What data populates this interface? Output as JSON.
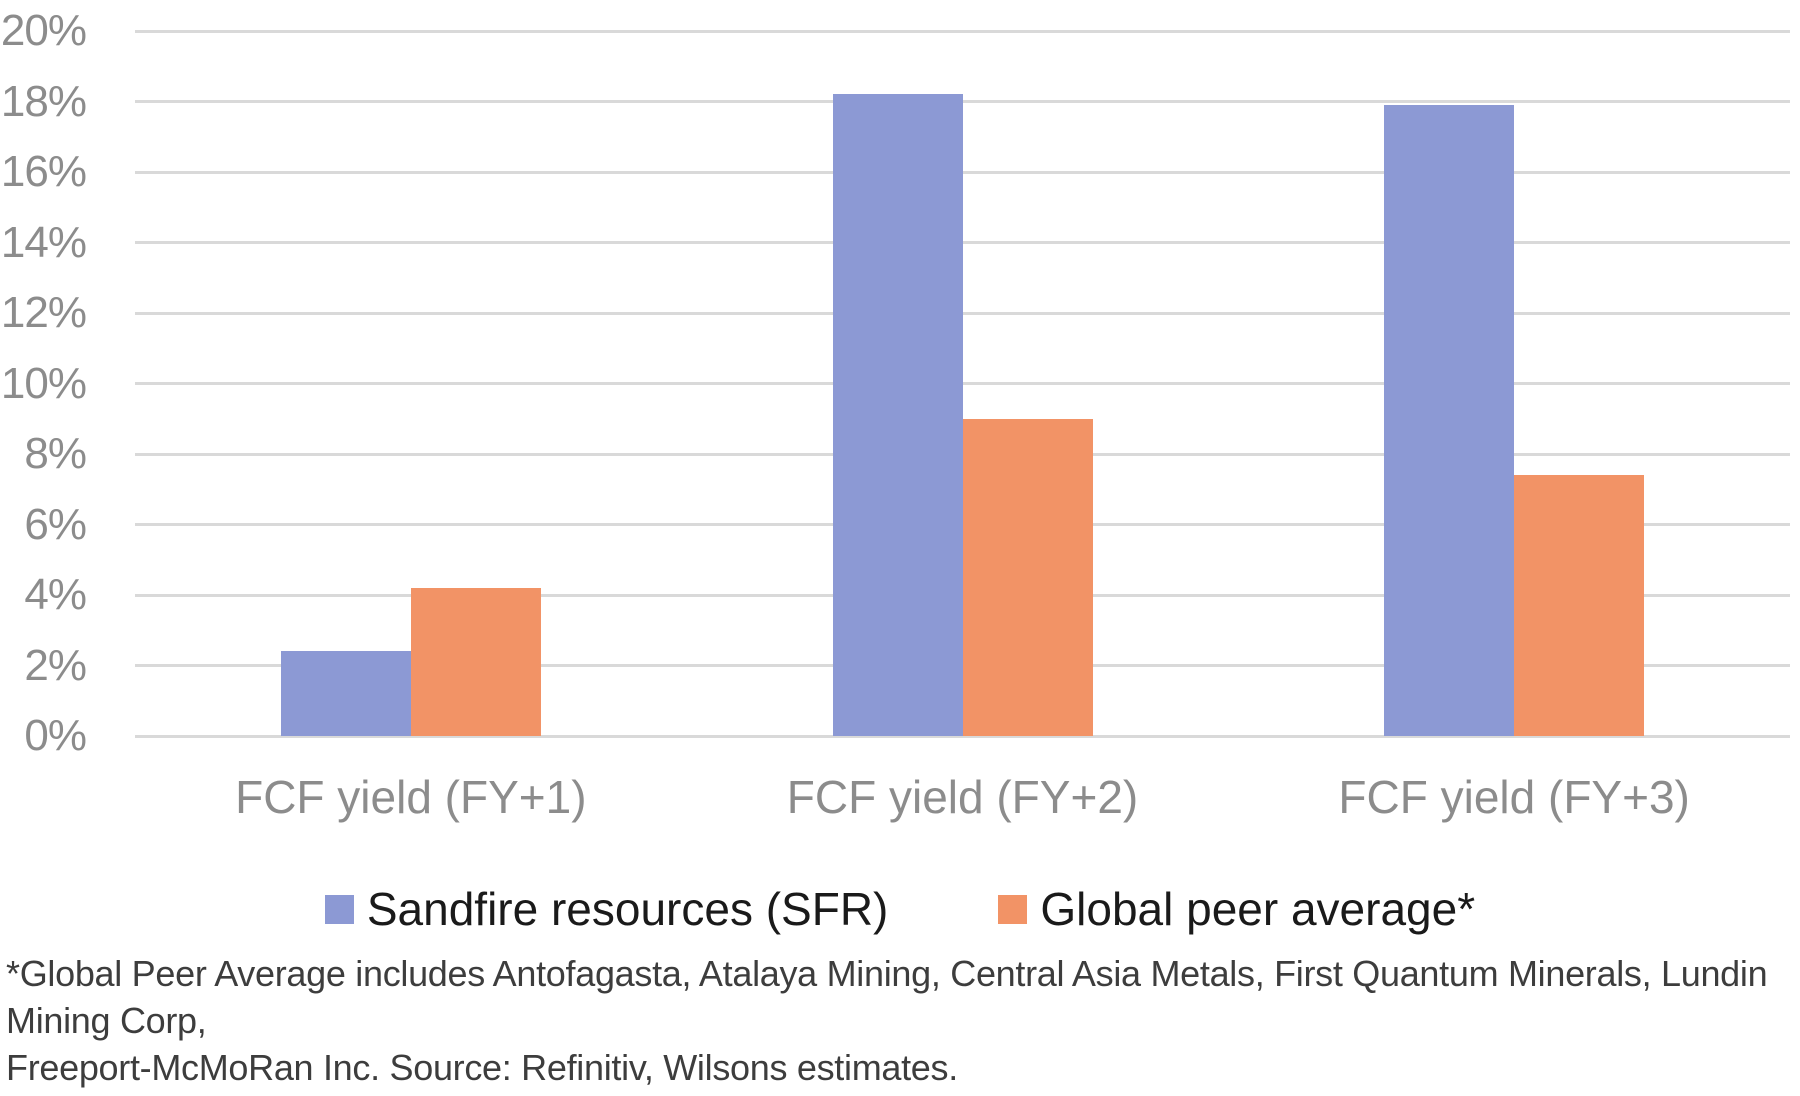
{
  "chart_data": {
    "type": "bar",
    "categories": [
      "FCF yield (FY+1)",
      "FCF yield (FY+2)",
      "FCF yield (FY+3)"
    ],
    "series": [
      {
        "name": "Sandfire resources (SFR)",
        "color": "#8C99D4",
        "values": [
          2.4,
          18.2,
          17.9
        ]
      },
      {
        "name": "Global peer average*",
        "color": "#F29366",
        "values": [
          4.2,
          9.0,
          7.4
        ]
      }
    ],
    "title": "",
    "xlabel": "",
    "ylabel": "",
    "ylim": [
      0,
      20
    ],
    "ytick_step": 2,
    "ytick_labels": [
      "0%",
      "2%",
      "4%",
      "6%",
      "8%",
      "10%",
      "12%",
      "14%",
      "16%",
      "18%",
      "20%"
    ],
    "grid": true,
    "legend_position": "bottom"
  },
  "footnote": {
    "line1": "*Global Peer Average includes Antofagasta, Atalaya Mining, Central Asia Metals, First Quantum Minerals, Lundin Mining Corp,",
    "line2": "Freeport-McMoRan Inc. Source: Refinitiv, Wilsons estimates."
  },
  "colors": {
    "grid": "#D9D9D9",
    "axis_text": "#8C8C8C",
    "legend_text": "#1A1A1A",
    "footnote_text": "#3D3D3D",
    "background": "#FFFFFF"
  }
}
